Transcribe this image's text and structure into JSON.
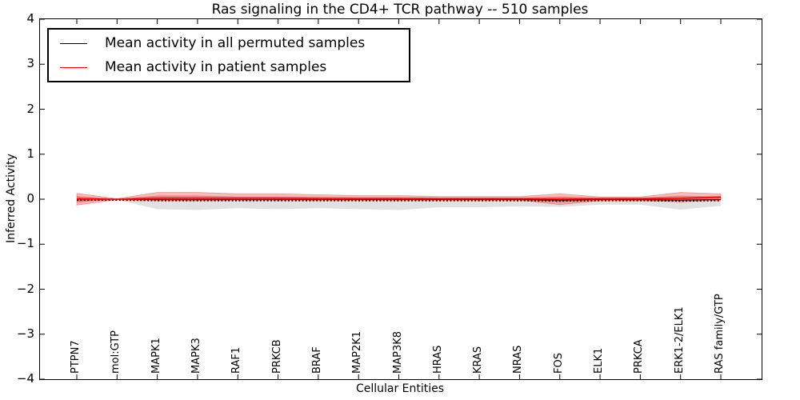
{
  "title": "Ras signaling in the CD4+ TCR pathway -- 510 samples",
  "axes": {
    "xlabel": "Cellular Entities",
    "ylabel": "Inferred Activity",
    "yticks": [
      -4,
      -3,
      -2,
      -1,
      0,
      1,
      2,
      3,
      4
    ],
    "ylim": [
      -4,
      4
    ]
  },
  "legend": {
    "items": [
      {
        "label": "Mean activity in all permuted samples",
        "color": "#000000"
      },
      {
        "label": "Mean activity in patient samples",
        "color": "#ff0000"
      }
    ],
    "position": "upper left"
  },
  "colors": {
    "patient_line": "#ff0000",
    "permuted_line": "#000000",
    "patient_band": "rgba(255,0,0,0.27)",
    "patient_band_inner": "rgba(230,30,30,0.38)",
    "permuted_band": "rgba(120,120,120,0.22)",
    "frame": "#000000"
  },
  "chart_data": {
    "type": "line",
    "title": "Ras signaling in the CD4+ TCR pathway -- 510 samples",
    "xlabel": "Cellular Entities",
    "ylabel": "Inferred Activity",
    "ylim": [
      -4,
      4
    ],
    "grid": false,
    "legend_position": "upper left",
    "categories": [
      "PTPN7",
      "mol:GTP",
      "MAPK1",
      "MAPK3",
      "RAF1",
      "PRKCB",
      "BRAF",
      "MAP2K1",
      "MAP3K8",
      "HRAS",
      "KRAS",
      "NRAS",
      "FOS",
      "ELK1",
      "PRKCA",
      "ERK1-2/ELK1",
      "RAS family/GTP"
    ],
    "series": [
      {
        "name": "Mean activity in all permuted samples",
        "color": "#000000",
        "style": "solid-with-dotted-overlay",
        "values": [
          0.0,
          0.0,
          -0.01,
          -0.01,
          -0.01,
          -0.01,
          -0.01,
          -0.01,
          -0.01,
          -0.01,
          -0.01,
          -0.01,
          -0.02,
          -0.01,
          -0.01,
          -0.02,
          -0.01
        ]
      },
      {
        "name": "Mean activity in patient samples",
        "color": "#ff0000",
        "style": "solid",
        "values": [
          0.01,
          0.0,
          0.02,
          0.02,
          0.02,
          0.02,
          0.01,
          0.01,
          0.01,
          0.01,
          0.01,
          0.01,
          0.0,
          0.01,
          0.01,
          0.02,
          0.05
        ]
      }
    ],
    "bands": [
      {
        "name": "permuted-range",
        "upper": [
          0.03,
          0.01,
          0.05,
          0.05,
          0.05,
          0.05,
          0.05,
          0.05,
          0.05,
          0.04,
          0.04,
          0.04,
          0.04,
          0.04,
          0.04,
          0.04,
          0.04
        ],
        "lower": [
          -0.05,
          -0.01,
          -0.22,
          -0.24,
          -0.2,
          -0.22,
          -0.2,
          -0.22,
          -0.24,
          -0.18,
          -0.18,
          -0.16,
          -0.17,
          -0.12,
          -0.12,
          -0.23,
          -0.15
        ]
      },
      {
        "name": "patient-range-outer",
        "upper": [
          0.13,
          0.01,
          0.15,
          0.15,
          0.12,
          0.12,
          0.1,
          0.08,
          0.08,
          0.06,
          0.06,
          0.06,
          0.12,
          0.05,
          0.05,
          0.15,
          0.12
        ],
        "lower": [
          -0.13,
          -0.01,
          -0.03,
          -0.03,
          -0.02,
          -0.02,
          -0.02,
          -0.02,
          -0.02,
          -0.02,
          -0.02,
          -0.02,
          -0.12,
          -0.03,
          -0.03,
          -0.06,
          -0.02
        ]
      },
      {
        "name": "patient-range-inner",
        "upper": [
          0.07,
          0.005,
          0.08,
          0.08,
          0.06,
          0.06,
          0.05,
          0.04,
          0.04,
          0.03,
          0.03,
          0.03,
          0.06,
          0.03,
          0.03,
          0.08,
          0.06
        ],
        "lower": [
          -0.07,
          -0.005,
          -0.02,
          -0.02,
          -0.01,
          -0.01,
          -0.01,
          -0.01,
          -0.01,
          -0.01,
          -0.01,
          -0.01,
          -0.06,
          -0.02,
          -0.02,
          -0.03,
          -0.01
        ]
      }
    ]
  }
}
